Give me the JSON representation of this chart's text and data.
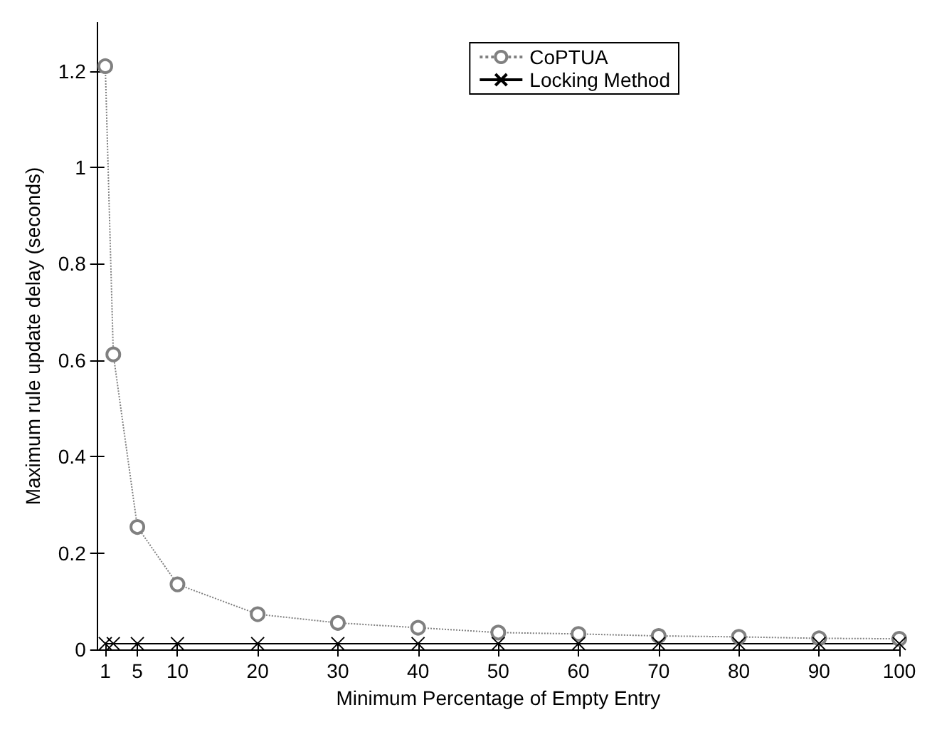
{
  "chart_data": {
    "type": "line",
    "xlabel": "Minimum Percentage of Empty Entry",
    "ylabel": "Maximum rule update delay (seconds)",
    "xlim": [
      0,
      100
    ],
    "xticks": [
      1,
      5,
      10,
      20,
      30,
      40,
      50,
      60,
      70,
      80,
      90,
      100
    ],
    "ylim": [
      0,
      1.3
    ],
    "yticks": [
      0,
      0.2,
      0.4,
      0.6,
      0.8,
      1,
      1.2
    ],
    "grid": false,
    "legend": "top right",
    "series": [
      {
        "name": "CoPTUA",
        "color": "#808080",
        "marker": "circle",
        "line_style": "dotted",
        "x": [
          1,
          2,
          5,
          10,
          20,
          30,
          40,
          50,
          60,
          70,
          80,
          90,
          100
        ],
        "values": [
          1.21,
          0.612,
          0.254,
          0.135,
          0.073,
          0.055,
          0.045,
          0.035,
          0.032,
          0.028,
          0.026,
          0.023,
          0.022
        ]
      },
      {
        "name": "Locking Method",
        "color": "#000000",
        "marker": "cross",
        "line_style": "solid",
        "x": [
          1,
          2,
          5,
          10,
          20,
          30,
          40,
          50,
          60,
          70,
          80,
          90,
          100
        ],
        "values": [
          0.012,
          0.012,
          0.012,
          0.012,
          0.012,
          0.012,
          0.012,
          0.012,
          0.012,
          0.012,
          0.012,
          0.012,
          0.012
        ]
      }
    ]
  }
}
